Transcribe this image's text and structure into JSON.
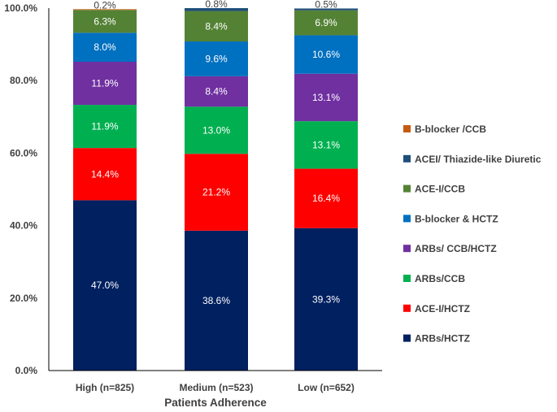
{
  "chart_data": {
    "type": "bar",
    "stacked": true,
    "title": "",
    "xlabel": "Patients Adherence",
    "ylabel": "",
    "ylim": [
      0,
      100
    ],
    "ytick_labels": [
      "0.0%",
      "20.0%",
      "40.0%",
      "60.0%",
      "80.0%",
      "100.0%"
    ],
    "categories": [
      "High (n=825)",
      "Medium (n=523)",
      "Low (n=652)"
    ],
    "series": [
      {
        "name": "ARBs/HCTZ",
        "color": "#002060",
        "values": [
          47.0,
          38.6,
          39.3
        ],
        "labels": [
          "47.0%",
          "38.6%",
          "39.3%"
        ]
      },
      {
        "name": "ACE-I/HCTZ",
        "color": "#FF0000",
        "values": [
          14.4,
          21.2,
          16.4
        ],
        "labels": [
          "14.4%",
          "21.2%",
          "16.4%"
        ]
      },
      {
        "name": "ARBs/CCB",
        "color": "#00B050",
        "values": [
          11.9,
          13.0,
          13.1
        ],
        "labels": [
          "11.9%",
          "13.0%",
          "13.1%"
        ]
      },
      {
        "name": "ARBs/ CCB/HCTZ",
        "color": "#7030A0",
        "values": [
          11.9,
          8.4,
          13.1
        ],
        "labels": [
          "11.9%",
          "8.4%",
          "13.1%"
        ]
      },
      {
        "name": "B-blocker & HCTZ",
        "color": "#0070C0",
        "values": [
          8.0,
          9.6,
          10.6
        ],
        "labels": [
          "8.0%",
          "9.6%",
          "10.6%"
        ]
      },
      {
        "name": "ACE-I/CCB",
        "color": "#548235",
        "values": [
          6.3,
          8.4,
          6.9
        ],
        "labels": [
          "6.3%",
          "8.4%",
          "6.9%"
        ]
      },
      {
        "name": "ACEI/ Thiazide-like Diuretic",
        "color": "#1F4E79",
        "values": [
          0.0,
          0.8,
          0.5
        ],
        "labels": [
          "",
          "0.8%",
          "0.5%"
        ]
      },
      {
        "name": "B-blocker /CCB",
        "color": "#C55A11",
        "values": [
          0.2,
          0.0,
          0.0
        ],
        "labels": [
          "0.2%",
          "",
          ""
        ]
      }
    ],
    "legend_position": "right",
    "grid": false
  }
}
